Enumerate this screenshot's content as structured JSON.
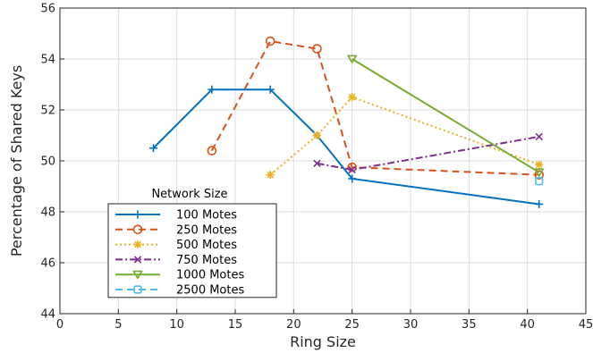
{
  "chart_data": {
    "type": "line",
    "xlabel": "Ring Size",
    "ylabel": "Percentage of Shared Keys",
    "xlim": [
      0,
      45
    ],
    "ylim": [
      44,
      56
    ],
    "xticks": [
      0,
      5,
      10,
      15,
      20,
      25,
      30,
      35,
      40,
      45
    ],
    "yticks": [
      44,
      46,
      48,
      50,
      52,
      54,
      56
    ],
    "grid": true,
    "legend": {
      "title": "Network Size",
      "placement": "bottom-left"
    },
    "series": [
      {
        "name": "100 Motes",
        "color": "#0072BD",
        "dash": "solid",
        "marker": "plus",
        "x": [
          8,
          13,
          18,
          22,
          25,
          41
        ],
        "y": [
          50.5,
          52.8,
          52.8,
          51.0,
          49.3,
          48.3
        ]
      },
      {
        "name": "250 Motes",
        "color": "#D95319",
        "dash": "dashed",
        "marker": "circle",
        "x": [
          13,
          18,
          22,
          25,
          41
        ],
        "y": [
          50.4,
          54.7,
          54.4,
          49.75,
          49.45
        ]
      },
      {
        "name": "500 Motes",
        "color": "#EDB120",
        "dash": "dotted",
        "marker": "asterisk",
        "x": [
          18,
          22,
          25,
          41
        ],
        "y": [
          49.45,
          51.0,
          52.5,
          49.85
        ]
      },
      {
        "name": "750 Motes",
        "color": "#7E2F8E",
        "dash": "dashdot",
        "marker": "x",
        "x": [
          22,
          25,
          41
        ],
        "y": [
          49.9,
          49.65,
          50.95
        ]
      },
      {
        "name": "1000 Motes",
        "color": "#77AC30",
        "dash": "solid",
        "marker": "triangle-down",
        "x": [
          25,
          41
        ],
        "y": [
          54.0,
          49.55
        ]
      },
      {
        "name": "2500 Motes",
        "color": "#4DBEEE",
        "dash": "dashed",
        "marker": "square",
        "x": [
          41
        ],
        "y": [
          49.2
        ]
      }
    ]
  }
}
